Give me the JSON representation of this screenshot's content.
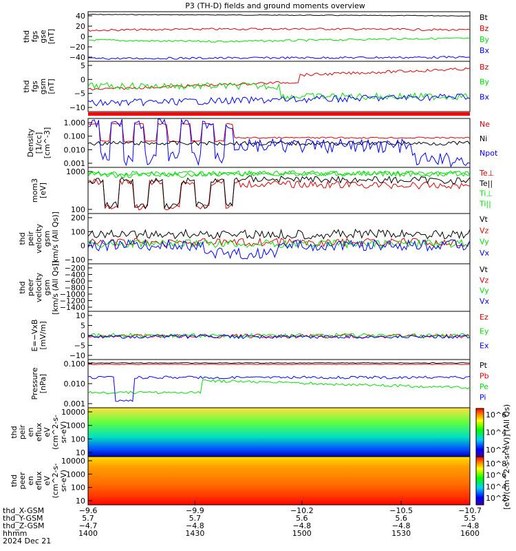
{
  "chart_data": {
    "type": "line",
    "title": "P3 (TH-D) fields and ground moments overview",
    "date": "2024 Dec 21",
    "colors": {
      "black": "#000000",
      "red": "#e00000",
      "green": "#00e000",
      "blue": "#0000ff"
    },
    "panels": [
      {
        "ylabel": [
          "thd",
          "fgs",
          "gse",
          "[nT]"
        ],
        "ticks": [
          "40",
          "20",
          "0",
          "−20",
          "−40"
        ],
        "legend": [
          {
            "name": "Bt",
            "color": "black"
          },
          {
            "name": "Bz",
            "color": "red"
          },
          {
            "name": "By",
            "color": "green"
          },
          {
            "name": "Bx",
            "color": "blue"
          }
        ]
      },
      {
        "ylabel": [
          "thd",
          "fgs",
          "gsm",
          "[nT]"
        ],
        "ticks": [
          "5",
          "0",
          "−5",
          "−10"
        ],
        "legend": [
          {
            "name": "Bz",
            "color": "red"
          },
          {
            "name": "By",
            "color": "green"
          },
          {
            "name": "Bx",
            "color": "blue"
          }
        ]
      },
      {
        "ylabel": [
          "Density",
          "[1/cc]",
          "[cm^-3]"
        ],
        "ticks": [
          "1.000",
          "0.100",
          "0.010",
          "0.001"
        ],
        "legend": [
          {
            "name": "Ne",
            "color": "red"
          },
          {
            "name": "Ni",
            "color": "black"
          },
          {
            "name": "Npot",
            "color": "blue"
          }
        ]
      },
      {
        "ylabel": [
          "mom3",
          "[eV]"
        ],
        "ticks": [
          "1000",
          "100"
        ],
        "legend": [
          {
            "name": "Te⊥",
            "color": "red"
          },
          {
            "name": "Te||",
            "color": "black"
          },
          {
            "name": "Ti⊥",
            "color": "green"
          },
          {
            "name": "Ti||",
            "color": "green"
          }
        ]
      },
      {
        "ylabel": [
          "thd",
          "peir",
          "velocity",
          "gsm",
          "[km/s (All Qs)]"
        ],
        "ticks": [
          "200",
          "100",
          "0",
          "−100"
        ],
        "legend": [
          {
            "name": "Vt",
            "color": "black"
          },
          {
            "name": "Vz",
            "color": "red"
          },
          {
            "name": "Vy",
            "color": "green"
          },
          {
            "name": "Vx",
            "color": "blue"
          }
        ]
      },
      {
        "ylabel": [
          "thd",
          "peer",
          "velocity",
          "gsm",
          "[km/s (All Qs)]"
        ],
        "ticks": [
          "−200",
          "−400",
          "−600",
          "−800",
          "−1000",
          "−1200",
          "−1400"
        ],
        "legend": [
          {
            "name": "Vt",
            "color": "black"
          },
          {
            "name": "Vz",
            "color": "red"
          },
          {
            "name": "Vy",
            "color": "green"
          },
          {
            "name": "Vx",
            "color": "blue"
          }
        ]
      },
      {
        "ylabel": [
          "E=−VxB",
          "[mV/m]"
        ],
        "ticks": [
          "10",
          "5",
          "0",
          "−5",
          "−10"
        ],
        "legend": [
          {
            "name": "Ez",
            "color": "red"
          },
          {
            "name": "Ey",
            "color": "green"
          },
          {
            "name": "Ex",
            "color": "blue"
          }
        ]
      },
      {
        "ylabel": [
          "Pressure",
          "[nPa]"
        ],
        "ticks": [
          "0.100",
          "0.010",
          "0.001"
        ],
        "legend": [
          {
            "name": "Pt",
            "color": "black"
          },
          {
            "name": "Pb",
            "color": "red"
          },
          {
            "name": "Pe",
            "color": "green"
          },
          {
            "name": "Pi",
            "color": "blue"
          }
        ]
      },
      {
        "ylabel": [
          "thd",
          "peir",
          "en",
          "eflux",
          "eV",
          "(cm^2-s-",
          "sr-eV)"
        ],
        "ticks": [
          "10000",
          "1000",
          "100",
          "10"
        ],
        "colorbar_ticks": [
          "10^6",
          "10^4",
          "10^2"
        ]
      },
      {
        "ylabel": [
          "thd",
          "peer",
          "en",
          "eflux",
          "eV",
          "(cm^2-s-",
          "sr-eV)"
        ],
        "ticks": [
          "10000",
          "1000",
          "100",
          "10"
        ],
        "colorbar_ticks": [
          "10^8",
          "10^6",
          "10^4",
          "10^2"
        ]
      }
    ],
    "colorbar_label": "[eV/(cm^2-s-sr-eV)] (All Qs)",
    "xaxis": {
      "rows": [
        {
          "name": "thd_X-GSM",
          "values": [
            "−9.6",
            "−9.9",
            "−10.2",
            "−10.5",
            "−10.7"
          ]
        },
        {
          "name": "thd_Y-GSM",
          "values": [
            "5.7",
            "5.7",
            "5.6",
            "5.6",
            "5.5"
          ]
        },
        {
          "name": "thd_Z-GSM",
          "values": [
            "−4.7",
            "−4.8",
            "−4.8",
            "−4.8",
            "−4.8"
          ]
        },
        {
          "name": "hhmm",
          "values": [
            "1400",
            "1430",
            "1500",
            "1530",
            "1600"
          ]
        }
      ]
    }
  }
}
